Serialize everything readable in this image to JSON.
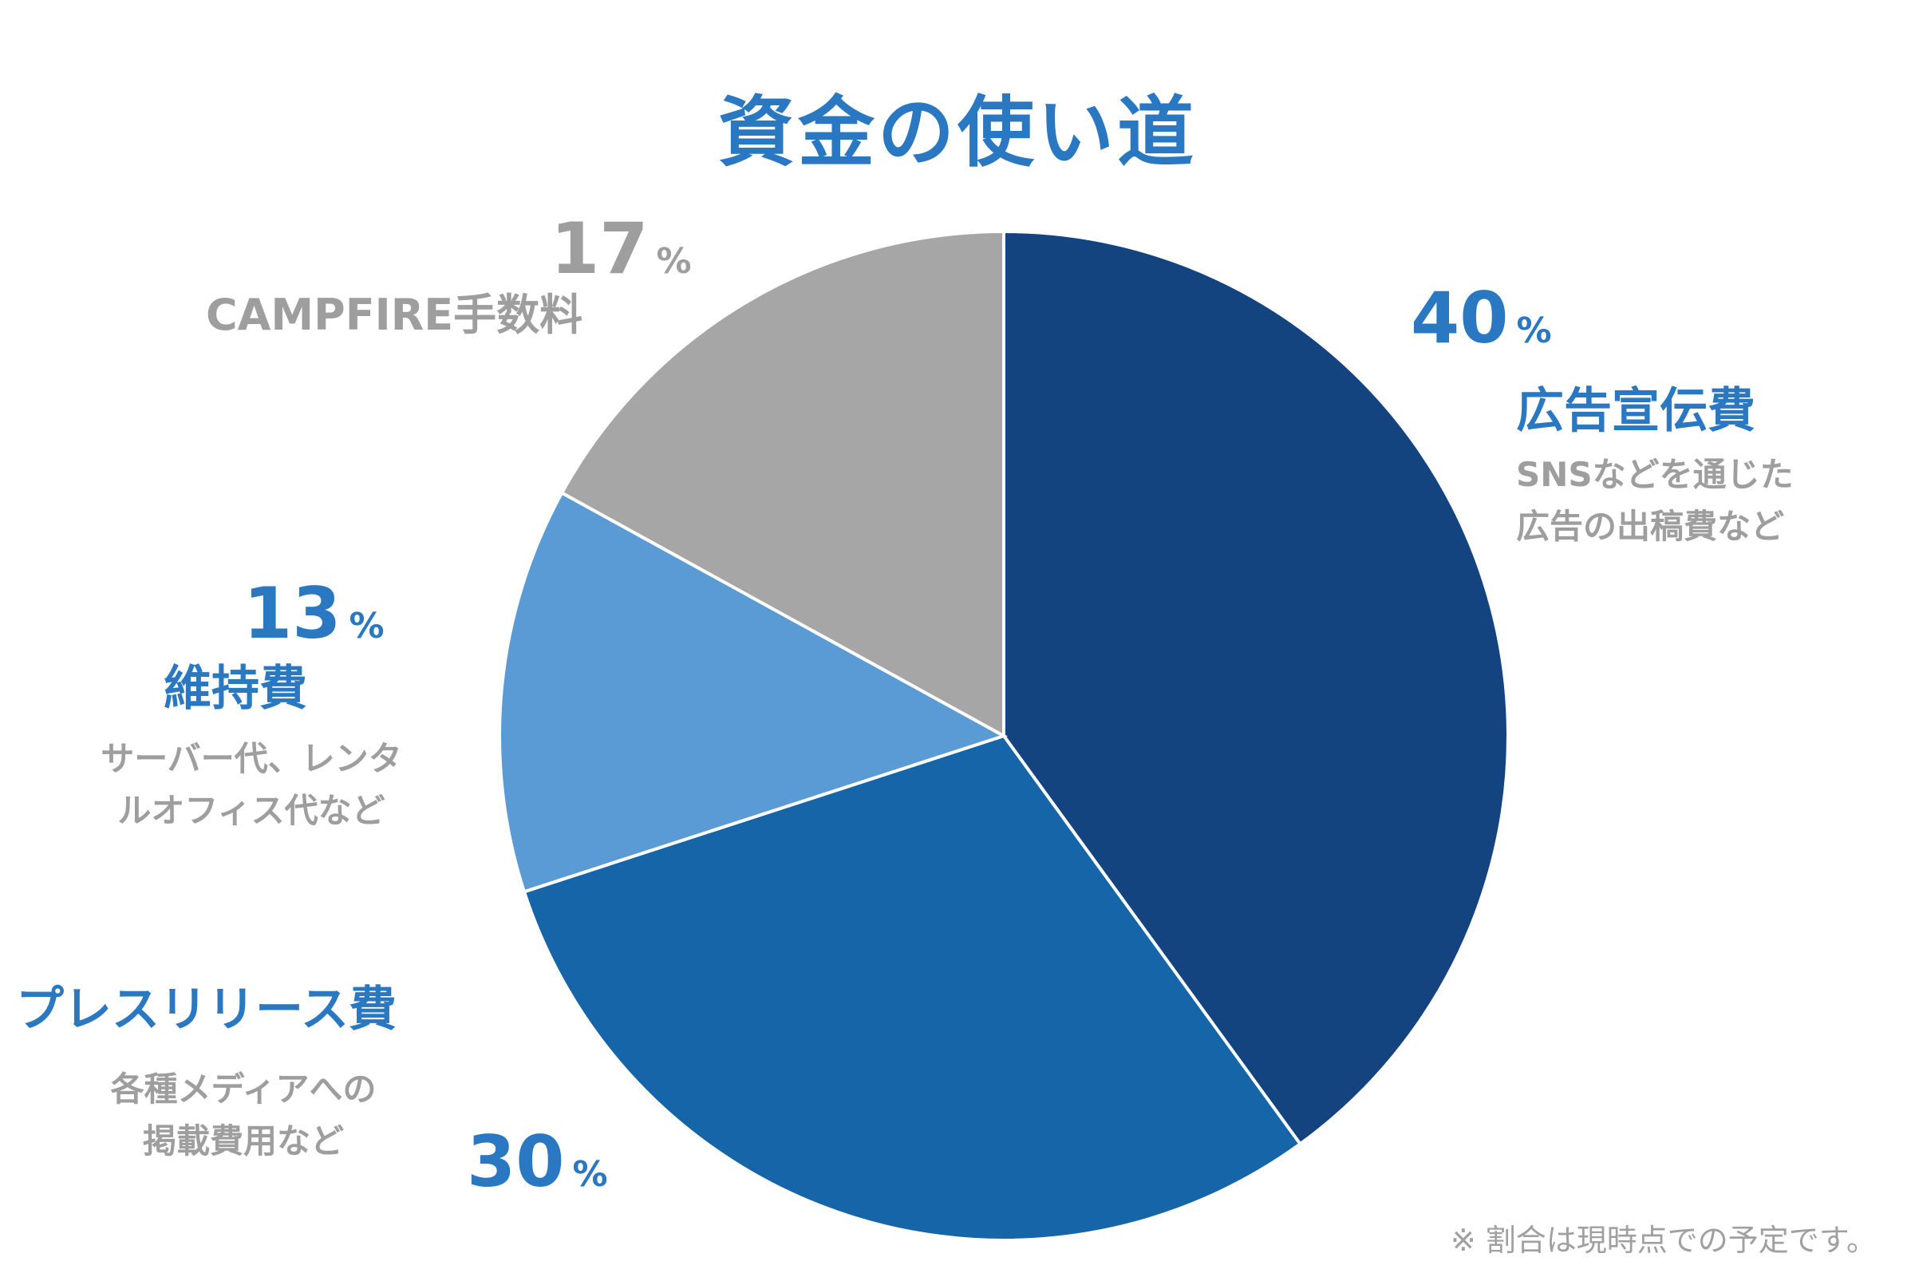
{
  "title": "資金の使い道",
  "note": "※ 割合は現時点での予定です。",
  "percent_symbol": "%",
  "colors": {
    "advertising": "#13447f",
    "press": "#1565a8",
    "maintenance": "#5b9bd5",
    "fee": "#a6a6a6",
    "label_blue": "#2a78c2",
    "label_gray": "#9e9e9e"
  },
  "chart_data": {
    "type": "pie",
    "start": "12 o'clock",
    "direction": "clockwise",
    "slices": [
      {
        "key": "advertising",
        "label": "広告宣伝費",
        "value": 40,
        "value_text": "40",
        "description": [
          "SNSなどを通じた",
          "広告の出稿費など"
        ]
      },
      {
        "key": "press",
        "label": "プレスリリース費",
        "value": 30,
        "value_text": "30",
        "description": [
          "各種メディアへの",
          "掲載費用など"
        ]
      },
      {
        "key": "maintenance",
        "label": "維持費",
        "value": 13,
        "value_text": "13",
        "description": [
          "サーバー代、レンタ",
          "ルオフィス代など"
        ]
      },
      {
        "key": "fee",
        "label": "CAMPFIRE手数料",
        "value": 17,
        "value_text": "17",
        "description": []
      }
    ]
  }
}
